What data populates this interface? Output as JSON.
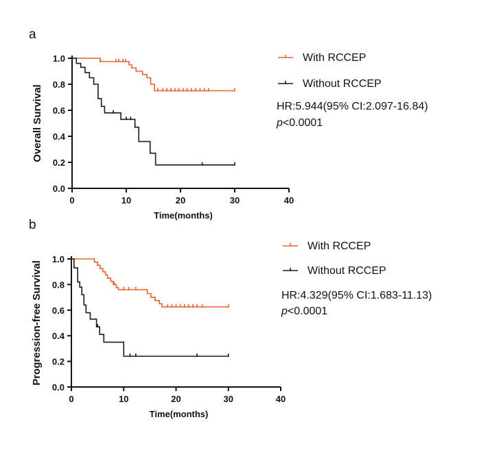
{
  "chart_data": [
    {
      "type": "line",
      "subtype": "kaplan-meier",
      "panel_label": "a",
      "xlabel": "Time(months)",
      "ylabel": "Overall Survival",
      "xlim": [
        0,
        40
      ],
      "ylim": [
        0,
        1.0
      ],
      "xticks": [
        "0",
        "10",
        "20",
        "30",
        "40"
      ],
      "yticks": [
        "0.0",
        "0.2",
        "0.4",
        "0.6",
        "0.8",
        "1.0"
      ],
      "series": [
        {
          "name": "With RCCEP",
          "color": "#e8622a",
          "steps": [
            [
              0,
              1.0
            ],
            [
              5.2,
              0.975
            ],
            [
              10.5,
              0.95
            ],
            [
              11.0,
              0.925
            ],
            [
              11.8,
              0.9
            ],
            [
              13.0,
              0.875
            ],
            [
              13.8,
              0.85
            ],
            [
              14.5,
              0.8
            ],
            [
              15.2,
              0.75
            ],
            [
              30,
              0.75
            ]
          ],
          "censored": [
            [
              5.2,
              0.975
            ],
            [
              8.1,
              0.975
            ],
            [
              8.6,
              0.975
            ],
            [
              9.4,
              0.975
            ],
            [
              9.9,
              0.975
            ],
            [
              15.8,
              0.75
            ],
            [
              16.7,
              0.75
            ],
            [
              17.5,
              0.75
            ],
            [
              18.2,
              0.75
            ],
            [
              19.0,
              0.75
            ],
            [
              19.7,
              0.75
            ],
            [
              20.5,
              0.75
            ],
            [
              21.2,
              0.75
            ],
            [
              22.0,
              0.75
            ],
            [
              22.8,
              0.75
            ],
            [
              23.6,
              0.75
            ],
            [
              24.4,
              0.75
            ],
            [
              25.2,
              0.75
            ],
            [
              30,
              0.75
            ]
          ]
        },
        {
          "name": "Without RCCEP",
          "color": "#1a1a1a",
          "steps": [
            [
              0,
              1.0
            ],
            [
              0.8,
              0.96
            ],
            [
              1.6,
              0.93
            ],
            [
              2.4,
              0.89
            ],
            [
              3.2,
              0.85
            ],
            [
              4.0,
              0.8
            ],
            [
              4.8,
              0.69
            ],
            [
              5.4,
              0.63
            ],
            [
              6.0,
              0.58
            ],
            [
              9.0,
              0.53
            ],
            [
              11.6,
              0.47
            ],
            [
              12.3,
              0.36
            ],
            [
              14.4,
              0.27
            ],
            [
              15.4,
              0.18
            ],
            [
              30,
              0.18
            ]
          ],
          "censored": [
            [
              7.6,
              0.58
            ],
            [
              10.0,
              0.53
            ],
            [
              10.8,
              0.53
            ],
            [
              11.6,
              0.47
            ],
            [
              24.0,
              0.18
            ],
            [
              30,
              0.18
            ]
          ]
        }
      ],
      "legend": [
        "With RCCEP",
        "Without RCCEP"
      ],
      "legend_position": "right",
      "annotation_hr": "HR:5.944(95% CI:2.097-16.84)",
      "annotation_p_symbol": "p",
      "annotation_p_value": "<0.0001"
    },
    {
      "type": "line",
      "subtype": "kaplan-meier",
      "panel_label": "b",
      "xlabel": "Time(months)",
      "ylabel": "Progression-free Survival",
      "xlim": [
        0,
        40
      ],
      "ylim": [
        0,
        1.0
      ],
      "xticks": [
        "0",
        "10",
        "20",
        "30",
        "40"
      ],
      "yticks": [
        "0.0",
        "0.2",
        "0.4",
        "0.6",
        "0.8",
        "1.0"
      ],
      "series": [
        {
          "name": "With RCCEP",
          "color": "#e8622a",
          "steps": [
            [
              0,
              1.0
            ],
            [
              4.4,
              0.975
            ],
            [
              5.0,
              0.95
            ],
            [
              5.5,
              0.925
            ],
            [
              6.0,
              0.9
            ],
            [
              6.5,
              0.875
            ],
            [
              6.9,
              0.85
            ],
            [
              7.5,
              0.825
            ],
            [
              8.0,
              0.8
            ],
            [
              8.6,
              0.775
            ],
            [
              9.0,
              0.76
            ],
            [
              14.5,
              0.73
            ],
            [
              15.2,
              0.7
            ],
            [
              16.0,
              0.675
            ],
            [
              16.8,
              0.65
            ],
            [
              17.3,
              0.625
            ],
            [
              30,
              0.625
            ]
          ],
          "censored": [
            [
              5.0,
              0.95
            ],
            [
              8.2,
              0.8
            ],
            [
              10.0,
              0.76
            ],
            [
              11.0,
              0.76
            ],
            [
              12.3,
              0.76
            ],
            [
              16.0,
              0.675
            ],
            [
              18.4,
              0.625
            ],
            [
              19.2,
              0.625
            ],
            [
              20.0,
              0.625
            ],
            [
              20.8,
              0.625
            ],
            [
              21.6,
              0.625
            ],
            [
              22.4,
              0.625
            ],
            [
              23.2,
              0.625
            ],
            [
              24.0,
              0.625
            ],
            [
              25.0,
              0.625
            ],
            [
              30,
              0.625
            ]
          ]
        },
        {
          "name": "Without RCCEP",
          "color": "#1a1a1a",
          "steps": [
            [
              0,
              1.0
            ],
            [
              0.5,
              0.93
            ],
            [
              1.2,
              0.82
            ],
            [
              1.6,
              0.78
            ],
            [
              2.0,
              0.72
            ],
            [
              2.4,
              0.64
            ],
            [
              2.8,
              0.58
            ],
            [
              3.6,
              0.53
            ],
            [
              4.8,
              0.47
            ],
            [
              5.4,
              0.41
            ],
            [
              6.2,
              0.35
            ],
            [
              10.0,
              0.24
            ],
            [
              30,
              0.24
            ]
          ],
          "censored": [
            [
              5.0,
              0.47
            ],
            [
              11.2,
              0.24
            ],
            [
              12.3,
              0.24
            ],
            [
              24.0,
              0.24
            ],
            [
              30,
              0.24
            ]
          ]
        }
      ],
      "legend": [
        "With RCCEP",
        "Without RCCEP"
      ],
      "legend_position": "right",
      "annotation_hr": "HR:4.329(95% CI:1.683-11.13)",
      "annotation_p_symbol": "p",
      "annotation_p_value": "<0.0001"
    }
  ]
}
